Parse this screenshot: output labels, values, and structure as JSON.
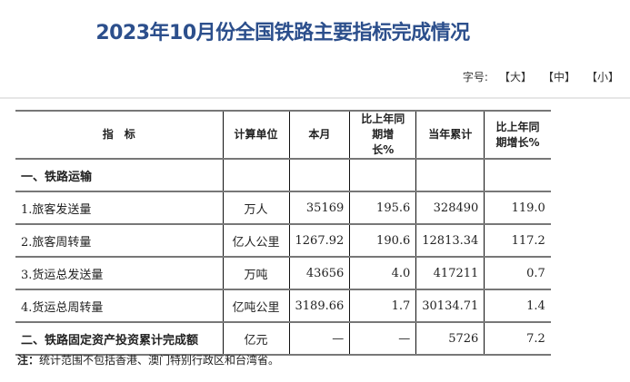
{
  "title": "2023年10月份全国铁路主要指标完成情况",
  "font_size": {
    "label": "字号:",
    "options": [
      "【大】",
      "【中】",
      "【小】"
    ]
  },
  "table": {
    "headers": [
      "指　标",
      "计算单位",
      "本月",
      "比上年同期增长%",
      "当年累计",
      "比上年同期增长%"
    ],
    "rows": [
      [
        "一、铁路运输",
        "",
        "",
        "",
        "",
        ""
      ],
      [
        "1.旅客发送量",
        "万人",
        "35169",
        "195.6",
        "328490",
        "119.0"
      ],
      [
        "2.旅客周转量",
        "亿人公里",
        "1267.92",
        "190.6",
        "12813.34",
        "117.2"
      ],
      [
        "3.货运总发送量",
        "万吨",
        "43656",
        "4.0",
        "417211",
        "0.7"
      ],
      [
        "4.货运总周转量",
        "亿吨公里",
        "3189.66",
        "1.7",
        "30134.71",
        "1.4"
      ],
      [
        "二、铁路固定资产投资累计完成额",
        "亿元",
        "—",
        "—",
        "5726",
        "7.2"
      ]
    ]
  },
  "note": {
    "label": "注：",
    "text": "统计范围不包括香港、澳门特别行政区和台湾省。"
  },
  "colors": {
    "title": "#2c4f8c"
  }
}
